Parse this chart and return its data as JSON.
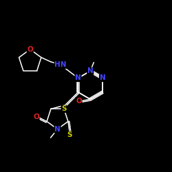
{
  "background": "#000000",
  "bond_color": "#ffffff",
  "atom_colors": {
    "N": "#4444ff",
    "O": "#dd2222",
    "S": "#cccc00"
  },
  "font_size_atom": 7.5,
  "fig_size": [
    2.5,
    2.5
  ],
  "dpi": 100
}
